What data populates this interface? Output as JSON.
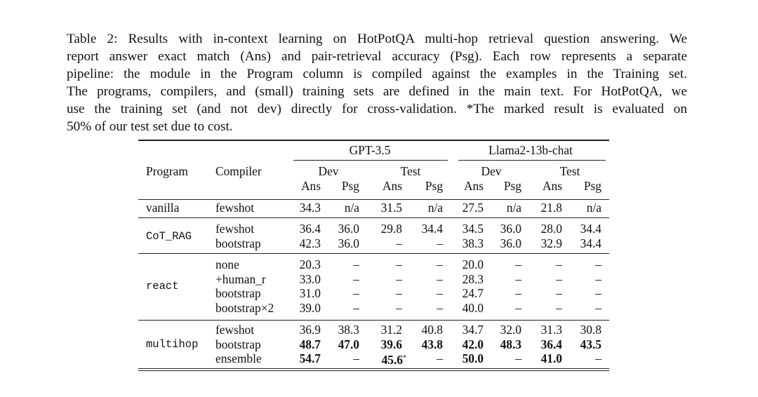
{
  "caption_lines": [
    "Table 2: Results with in-context learning on HotPotQA multi-hop retrieval question answering. We",
    "report answer exact match (Ans) and pair-retrieval accuracy (Psg). Each row represents a separate",
    "pipeline: the module in the Program column is compiled against the examples in the Training set.",
    "The programs, compilers, and (small) training sets are defined in the main text. For HotPotQA, we",
    "use the training set (and not dev) directly for cross-validation. *The marked result is evaluated on",
    "50% of our test set due to cost."
  ],
  "header": {
    "program": "Program",
    "compiler": "Compiler",
    "models": [
      "GPT-3.5",
      "Llama2-13b-chat"
    ],
    "splits": [
      "Dev",
      "Test",
      "Dev",
      "Test"
    ],
    "metrics": [
      "Ans",
      "Psg",
      "Ans",
      "Psg",
      "Ans",
      "Psg",
      "Ans",
      "Psg"
    ]
  },
  "groups": [
    {
      "program": "vanilla",
      "rows": [
        {
          "compiler": "fewshot",
          "cells": [
            {
              "v": "34.3"
            },
            {
              "v": "n/a"
            },
            {
              "v": "31.5"
            },
            {
              "v": "n/a"
            },
            {
              "v": "27.5"
            },
            {
              "v": "n/a"
            },
            {
              "v": "21.8"
            },
            {
              "v": "n/a"
            }
          ]
        }
      ]
    },
    {
      "program": "CoT_RAG",
      "rows": [
        {
          "compiler": "fewshot",
          "cells": [
            {
              "v": "36.4"
            },
            {
              "v": "36.0"
            },
            {
              "v": "29.8"
            },
            {
              "v": "34.4"
            },
            {
              "v": "34.5"
            },
            {
              "v": "36.0"
            },
            {
              "v": "28.0"
            },
            {
              "v": "34.4"
            }
          ]
        },
        {
          "compiler": "bootstrap",
          "cells": [
            {
              "v": "42.3"
            },
            {
              "v": "36.0"
            },
            {
              "v": "–"
            },
            {
              "v": "–"
            },
            {
              "v": "38.3"
            },
            {
              "v": "36.0"
            },
            {
              "v": "32.9"
            },
            {
              "v": "34.4"
            }
          ]
        }
      ]
    },
    {
      "program": "react",
      "rows": [
        {
          "compiler": "none",
          "cells": [
            {
              "v": "20.3"
            },
            {
              "v": "–"
            },
            {
              "v": "–"
            },
            {
              "v": "–"
            },
            {
              "v": "20.0"
            },
            {
              "v": "–"
            },
            {
              "v": "–"
            },
            {
              "v": "–"
            }
          ]
        },
        {
          "compiler": "+human_r",
          "cells": [
            {
              "v": "33.0"
            },
            {
              "v": "–"
            },
            {
              "v": "–"
            },
            {
              "v": "–"
            },
            {
              "v": "28.3"
            },
            {
              "v": "–"
            },
            {
              "v": "–"
            },
            {
              "v": "–"
            }
          ]
        },
        {
          "compiler": "bootstrap",
          "cells": [
            {
              "v": "31.0"
            },
            {
              "v": "–"
            },
            {
              "v": "–"
            },
            {
              "v": "–"
            },
            {
              "v": "24.7"
            },
            {
              "v": "–"
            },
            {
              "v": "–"
            },
            {
              "v": "–"
            }
          ]
        },
        {
          "compiler": "bootstrap×2",
          "cells": [
            {
              "v": "39.0"
            },
            {
              "v": "–"
            },
            {
              "v": "–"
            },
            {
              "v": "–"
            },
            {
              "v": "40.0"
            },
            {
              "v": "–"
            },
            {
              "v": "–"
            },
            {
              "v": "–"
            }
          ]
        }
      ]
    },
    {
      "program": "multihop",
      "rows": [
        {
          "compiler": "fewshot",
          "cells": [
            {
              "v": "36.9"
            },
            {
              "v": "38.3"
            },
            {
              "v": "31.2"
            },
            {
              "v": "40.8"
            },
            {
              "v": "34.7"
            },
            {
              "v": "32.0"
            },
            {
              "v": "31.3"
            },
            {
              "v": "30.8"
            }
          ]
        },
        {
          "compiler": "bootstrap",
          "cells": [
            {
              "v": "48.7",
              "b": true
            },
            {
              "v": "47.0",
              "b": true
            },
            {
              "v": "39.6",
              "b": true
            },
            {
              "v": "43.8",
              "b": true
            },
            {
              "v": "42.0",
              "b": true
            },
            {
              "v": "48.3",
              "b": true
            },
            {
              "v": "36.4",
              "b": true
            },
            {
              "v": "43.5",
              "b": true
            }
          ]
        },
        {
          "compiler": "ensemble",
          "cells": [
            {
              "v": "54.7",
              "b": true
            },
            {
              "v": "–"
            },
            {
              "v": "45.6",
              "b": true,
              "sup": "*"
            },
            {
              "v": "–"
            },
            {
              "v": "50.0",
              "b": true
            },
            {
              "v": "–"
            },
            {
              "v": "41.0",
              "b": true
            },
            {
              "v": "–"
            }
          ]
        }
      ]
    }
  ]
}
